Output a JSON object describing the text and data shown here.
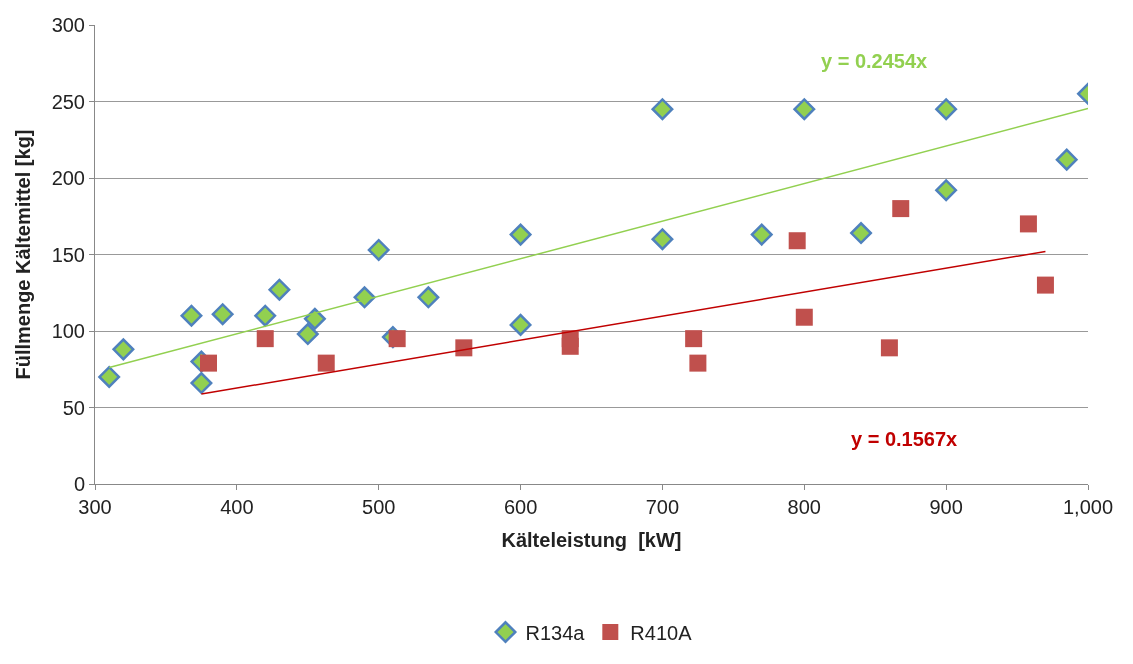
{
  "chart_data": {
    "type": "scatter",
    "xlabel": "Kälteleistung  [kW]",
    "ylabel": "Füllmenge Kältemittel [kg]",
    "xlim": [
      300,
      1000
    ],
    "xticks": [
      300,
      400,
      500,
      600,
      700,
      800,
      900,
      {
        "value": 1000,
        "label": "1,000"
      }
    ],
    "ylim": [
      0,
      300
    ],
    "yticks": [
      0,
      50,
      100,
      150,
      200,
      250,
      300
    ],
    "grid": "y",
    "legend": "bottom",
    "series": [
      {
        "name": "R134a",
        "color": "#92d050",
        "marker": "diamond",
        "x": [
          310,
          320,
          368,
          375,
          375,
          390,
          420,
          430,
          450,
          455,
          490,
          500,
          510,
          535,
          600,
          600,
          700,
          700,
          770,
          800,
          840,
          900,
          900,
          985,
          1000
        ],
        "values": [
          70,
          88,
          110,
          66,
          80,
          111,
          110,
          127,
          98,
          108,
          122,
          153,
          96,
          122,
          104,
          163,
          245,
          160,
          163,
          245,
          164,
          192,
          245,
          212,
          255
        ]
      },
      {
        "name": "R410A",
        "color": "#c0504d",
        "marker": "square",
        "x": [
          380,
          420,
          463,
          513,
          560,
          635,
          635,
          722,
          725,
          795,
          800,
          860,
          868,
          958,
          970
        ],
        "values": [
          79,
          95,
          79,
          95,
          89,
          95,
          90,
          95,
          79,
          159,
          109,
          89,
          180,
          170,
          130
        ]
      },
      {
        "type": "line",
        "color": "#92d050",
        "x": [
          310,
          1000
        ],
        "values": [
          76.1,
          245.4
        ]
      },
      {
        "type": "line",
        "color": "#c00000",
        "x": [
          375,
          970
        ],
        "values": [
          58.8,
          152.0
        ]
      }
    ],
    "annotations": [
      "y = 0.2454x",
      "y = 0.1567x"
    ]
  }
}
